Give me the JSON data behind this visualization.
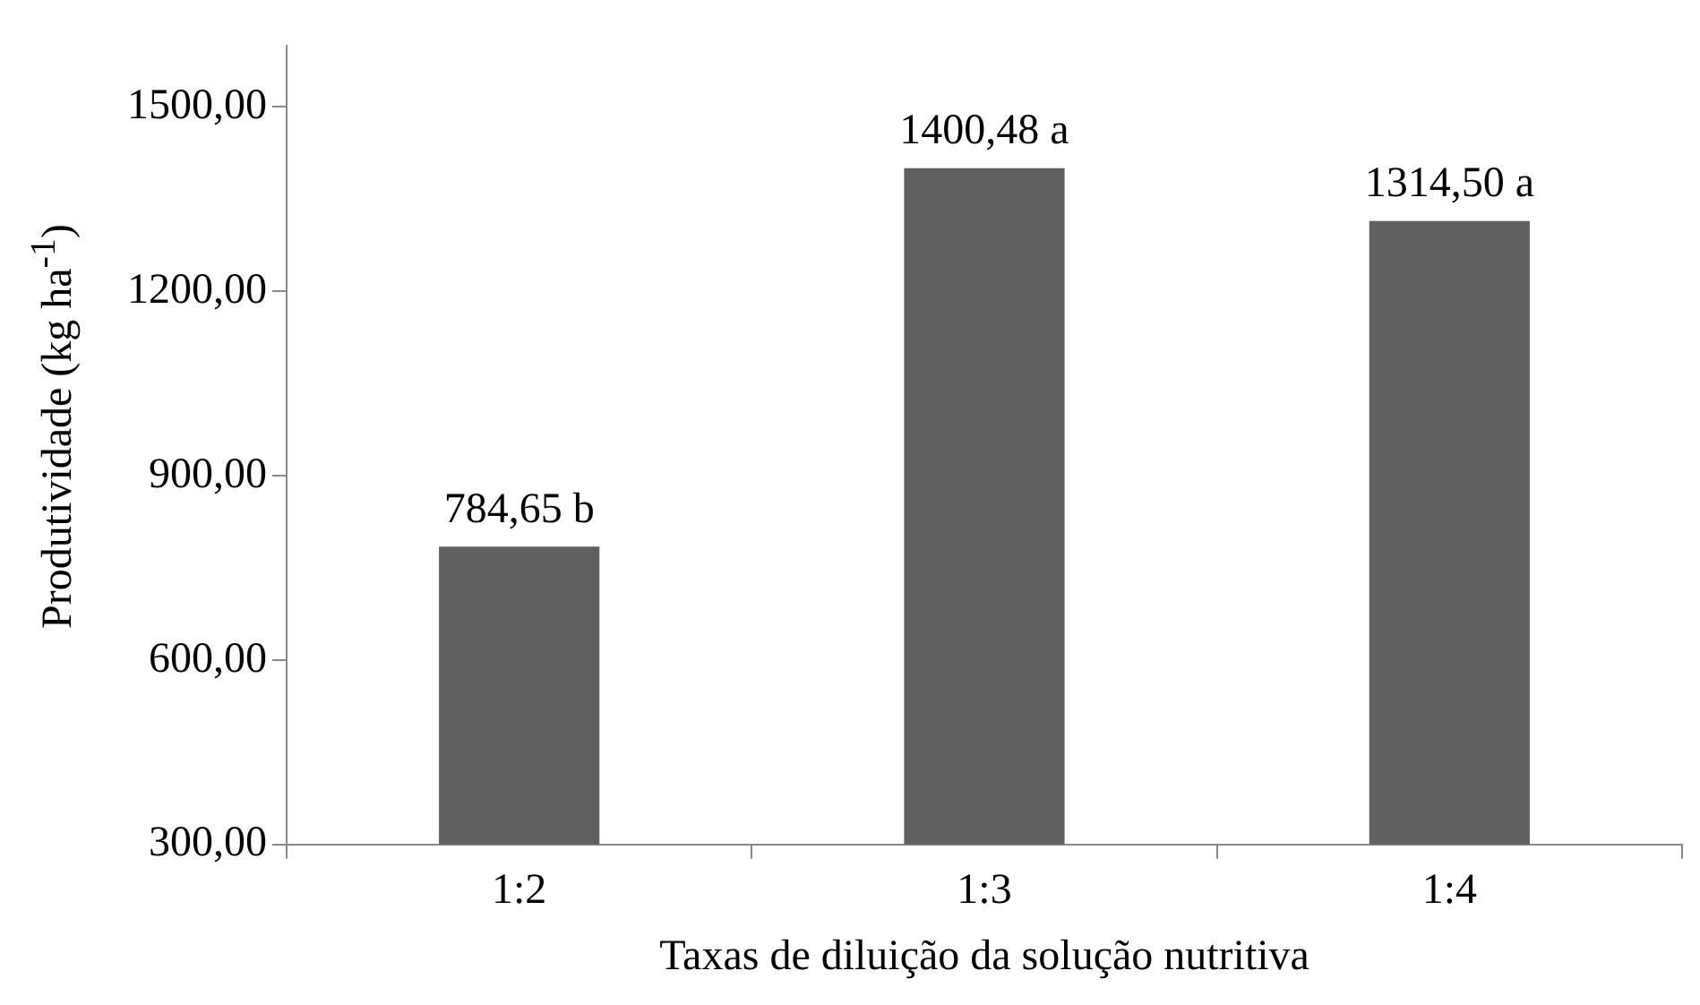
{
  "chart_data": {
    "type": "bar",
    "xlabel": "Taxas de diluição da solução nutritiva",
    "ylabel": "Produtividade (kg ha$^{-1}$)",
    "categories": [
      "1:2",
      "1:3",
      "1:4"
    ],
    "values": [
      784.65,
      1400.48,
      1314.5
    ],
    "value_labels": [
      "784,65 b",
      "1400,48 a",
      "1314,50 a"
    ],
    "color": "#606060",
    "ylim": [
      300,
      1600
    ],
    "yticks": [
      {
        "value": 300,
        "label": "300,00"
      },
      {
        "value": 600,
        "label": "600,00"
      },
      {
        "value": 900,
        "label": "900,00"
      },
      {
        "value": 1200,
        "label": "1200,00"
      },
      {
        "value": 1500,
        "label": "1500,00"
      }
    ],
    "grid": false,
    "legend": false
  }
}
